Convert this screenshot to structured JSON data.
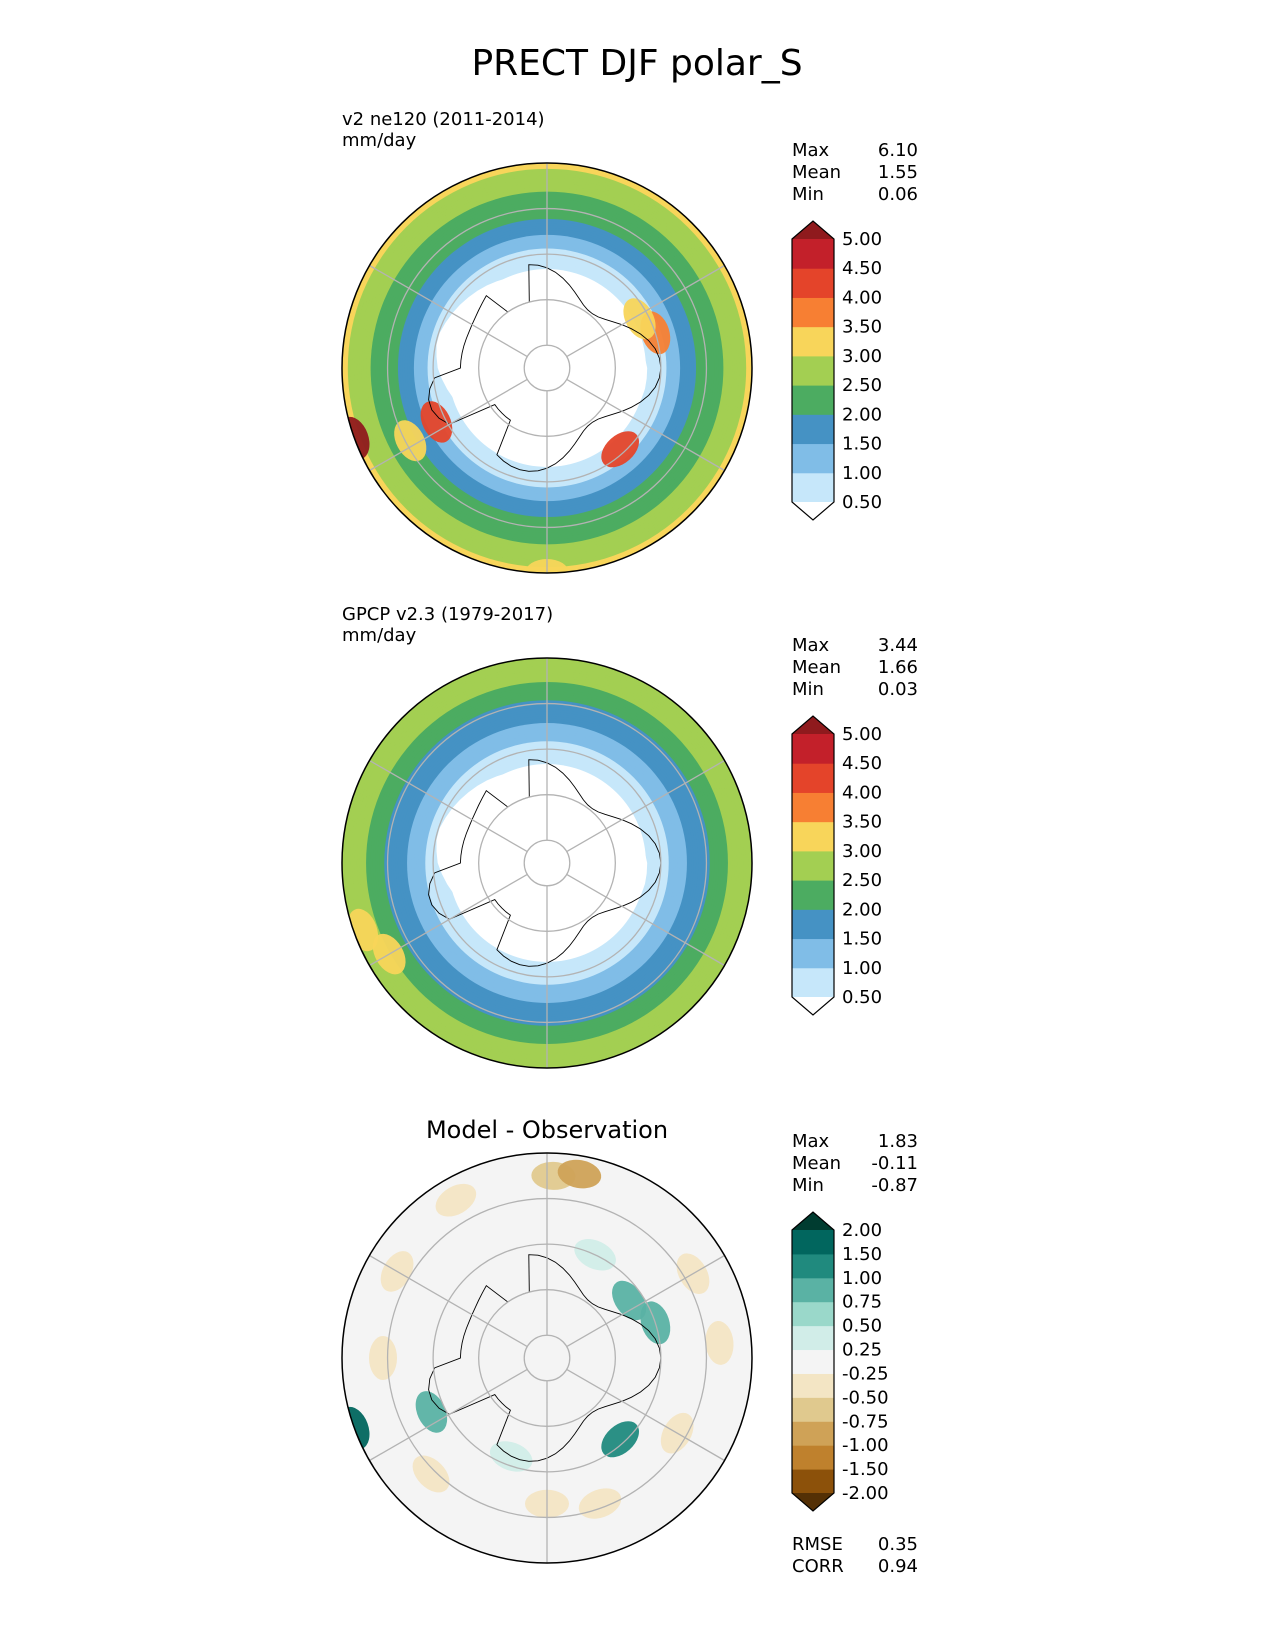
{
  "figure": {
    "title": "PRECT DJF polar_S"
  },
  "chart_data": [
    {
      "type": "heatmap",
      "projection": "south polar stereographic",
      "title": "",
      "name_label": "v2 ne120 (2011-2014)",
      "units": "mm/day",
      "stats": [
        {
          "label": "Max",
          "value": "6.10"
        },
        {
          "label": "Mean",
          "value": "1.55"
        },
        {
          "label": "Min",
          "value": "0.06"
        }
      ],
      "colorbar": {
        "levels": [
          "0.50",
          "1.00",
          "1.50",
          "2.00",
          "2.50",
          "3.00",
          "3.50",
          "4.00",
          "4.50",
          "5.00"
        ],
        "colors": [
          "#ffffff",
          "#c6e7fa",
          "#80bde7",
          "#4592c4",
          "#4cac61",
          "#a3cf52",
          "#f8d55a",
          "#f77f33",
          "#e4442a",
          "#c3202a",
          "#8f1a1d"
        ],
        "extend": "both"
      },
      "field": {
        "rings": [
          {
            "colat": 0,
            "value": 0.3
          },
          {
            "colat": 20,
            "value": 0.3
          },
          {
            "colat": 25,
            "value": 0.8
          },
          {
            "colat": 28,
            "value": 1.3
          },
          {
            "colat": 31,
            "value": 1.8
          },
          {
            "colat": 36,
            "value": 2.3
          },
          {
            "colat": 40,
            "value": 2.6
          },
          {
            "colat": 45,
            "value": 3.1
          }
        ],
        "antarctica_edge_colat": [
          21,
          21,
          22,
          23,
          24,
          25,
          24,
          22,
          20,
          19,
          18,
          17,
          17,
          18,
          19,
          20,
          21,
          22,
          22,
          21,
          20,
          20,
          21,
          21
        ],
        "spots": [
          {
            "lon": -62,
            "colat": 34,
            "value": 3.4
          },
          {
            "lon": -64,
            "colat": 27,
            "value": 4.2
          },
          {
            "lon": -70,
            "colat": 45,
            "value": 5.3
          },
          {
            "lon": 42,
            "colat": 24,
            "value": 4.0
          },
          {
            "lon": 108,
            "colat": 25,
            "value": 3.6
          },
          {
            "lon": 118,
            "colat": 23,
            "value": 3.2
          },
          {
            "lon": 0,
            "colat": 45,
            "value": 3.2
          }
        ]
      }
    },
    {
      "type": "heatmap",
      "projection": "south polar stereographic",
      "title": "",
      "name_label": "GPCP v2.3 (1979-2017)",
      "units": "mm/day",
      "stats": [
        {
          "label": "Max",
          "value": "3.44"
        },
        {
          "label": "Mean",
          "value": "1.66"
        },
        {
          "label": "Min",
          "value": "0.03"
        }
      ],
      "colorbar": {
        "levels": [
          "0.50",
          "1.00",
          "1.50",
          "2.00",
          "2.50",
          "3.00",
          "3.50",
          "4.00",
          "4.50",
          "5.00"
        ],
        "colors": [
          "#ffffff",
          "#c6e7fa",
          "#80bde7",
          "#4592c4",
          "#4cac61",
          "#a3cf52",
          "#f8d55a",
          "#f77f33",
          "#e4442a",
          "#c3202a",
          "#8f1a1d"
        ],
        "extend": "both"
      },
      "field": {
        "rings": [
          {
            "colat": 0,
            "value": 0.3
          },
          {
            "colat": 20,
            "value": 0.3
          },
          {
            "colat": 25,
            "value": 0.8
          },
          {
            "colat": 29,
            "value": 1.3
          },
          {
            "colat": 34,
            "value": 1.8
          },
          {
            "colat": 38,
            "value": 2.3
          },
          {
            "colat": 41,
            "value": 2.6
          },
          {
            "colat": 45,
            "value": 2.6
          }
        ],
        "antarctica_edge_colat": [
          21,
          21,
          22,
          23,
          24,
          25,
          24,
          22,
          20,
          19,
          18,
          17,
          17,
          18,
          19,
          20,
          21,
          22,
          22,
          21,
          20,
          20,
          21,
          21
        ],
        "spots": [
          {
            "lon": -70,
            "colat": 43,
            "value": 3.2
          },
          {
            "lon": -60,
            "colat": 40,
            "value": 3.2
          }
        ]
      }
    },
    {
      "type": "heatmap",
      "projection": "south polar stereographic",
      "title": "Model - Observation",
      "name_label": "",
      "units": "",
      "stats": [
        {
          "label": "Max",
          "value": "1.83"
        },
        {
          "label": "Mean",
          "value": "-0.11"
        },
        {
          "label": "Min",
          "value": "-0.87"
        }
      ],
      "bottom_stats": [
        {
          "label": "RMSE",
          "value": "0.35"
        },
        {
          "label": "CORR",
          "value": "0.94"
        }
      ],
      "colorbar": {
        "levels": [
          "-2.00",
          "-1.50",
          "-1.00",
          "-0.75",
          "-0.50",
          "-0.25",
          "0.25",
          "0.50",
          "0.75",
          "1.00",
          "1.50",
          "2.00"
        ],
        "colors": [
          "#543005",
          "#8c510a",
          "#bf812d",
          "#cfa257",
          "#e0c98e",
          "#f3e5c4",
          "#f4f4f4",
          "#d1ede8",
          "#9ad8ca",
          "#5ab2a4",
          "#208a7e",
          "#01665e",
          "#003c30"
        ],
        "extend": "both"
      },
      "field": {
        "rings": [
          {
            "colat": 0,
            "value": 0.0
          },
          {
            "colat": 45,
            "value": 0.0
          }
        ],
        "spots": [
          {
            "lon": 178,
            "colat": 40,
            "value": -0.55
          },
          {
            "lon": 170,
            "colat": 41,
            "value": -0.8
          },
          {
            "lon": -150,
            "colat": 40,
            "value": -0.4
          },
          {
            "lon": 120,
            "colat": 37,
            "value": -0.35
          },
          {
            "lon": 95,
            "colat": 38,
            "value": -0.35
          },
          {
            "lon": 60,
            "colat": 33,
            "value": -0.3
          },
          {
            "lon": 20,
            "colat": 34,
            "value": -0.3
          },
          {
            "lon": 0,
            "colat": 32,
            "value": -0.35
          },
          {
            "lon": -45,
            "colat": 36,
            "value": -0.4
          },
          {
            "lon": -90,
            "colat": 36,
            "value": -0.3
          },
          {
            "lon": -120,
            "colat": 38,
            "value": -0.3
          },
          {
            "lon": 42,
            "colat": 24,
            "value": 1.3
          },
          {
            "lon": 108,
            "colat": 25,
            "value": 0.9
          },
          {
            "lon": 125,
            "colat": 22,
            "value": 0.8
          },
          {
            "lon": -65,
            "colat": 28,
            "value": 0.8
          },
          {
            "lon": -70,
            "colat": 45,
            "value": 1.6
          },
          {
            "lon": 155,
            "colat": 25,
            "value": 0.4
          },
          {
            "lon": -20,
            "colat": 23,
            "value": 0.4
          }
        ]
      }
    }
  ]
}
